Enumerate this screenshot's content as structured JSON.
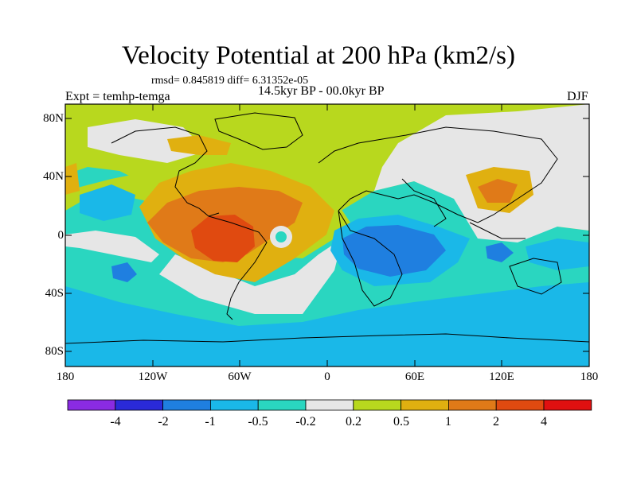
{
  "title": "Velocity Potential at 200 hPa (km2/s)",
  "stats": "rmsd= 0.845819 diff= 6.31352e-05",
  "experiment": "Expt = temhp-temga",
  "period": "14.5kyr BP - 00.0kyr BP",
  "season": "DJF",
  "axes": {
    "lat_labels": [
      "80N",
      "40N",
      "0",
      "40S",
      "80S"
    ],
    "lon_labels": [
      "180",
      "120W",
      "60W",
      "0",
      "60E",
      "120E",
      "180"
    ]
  },
  "colorbar": {
    "labels": [
      "-4",
      "-2",
      "-1",
      "-0.5",
      "-0.2",
      "0.2",
      "0.5",
      "1",
      "2",
      "4"
    ],
    "colors": [
      "#8a2be2",
      "#2a2ad8",
      "#1f7fe0",
      "#1ab8e8",
      "#2ad6c0",
      "#e6e6e6",
      "#b8d81e",
      "#e0b010",
      "#e07a18",
      "#e04a10",
      "#e01010"
    ]
  }
}
